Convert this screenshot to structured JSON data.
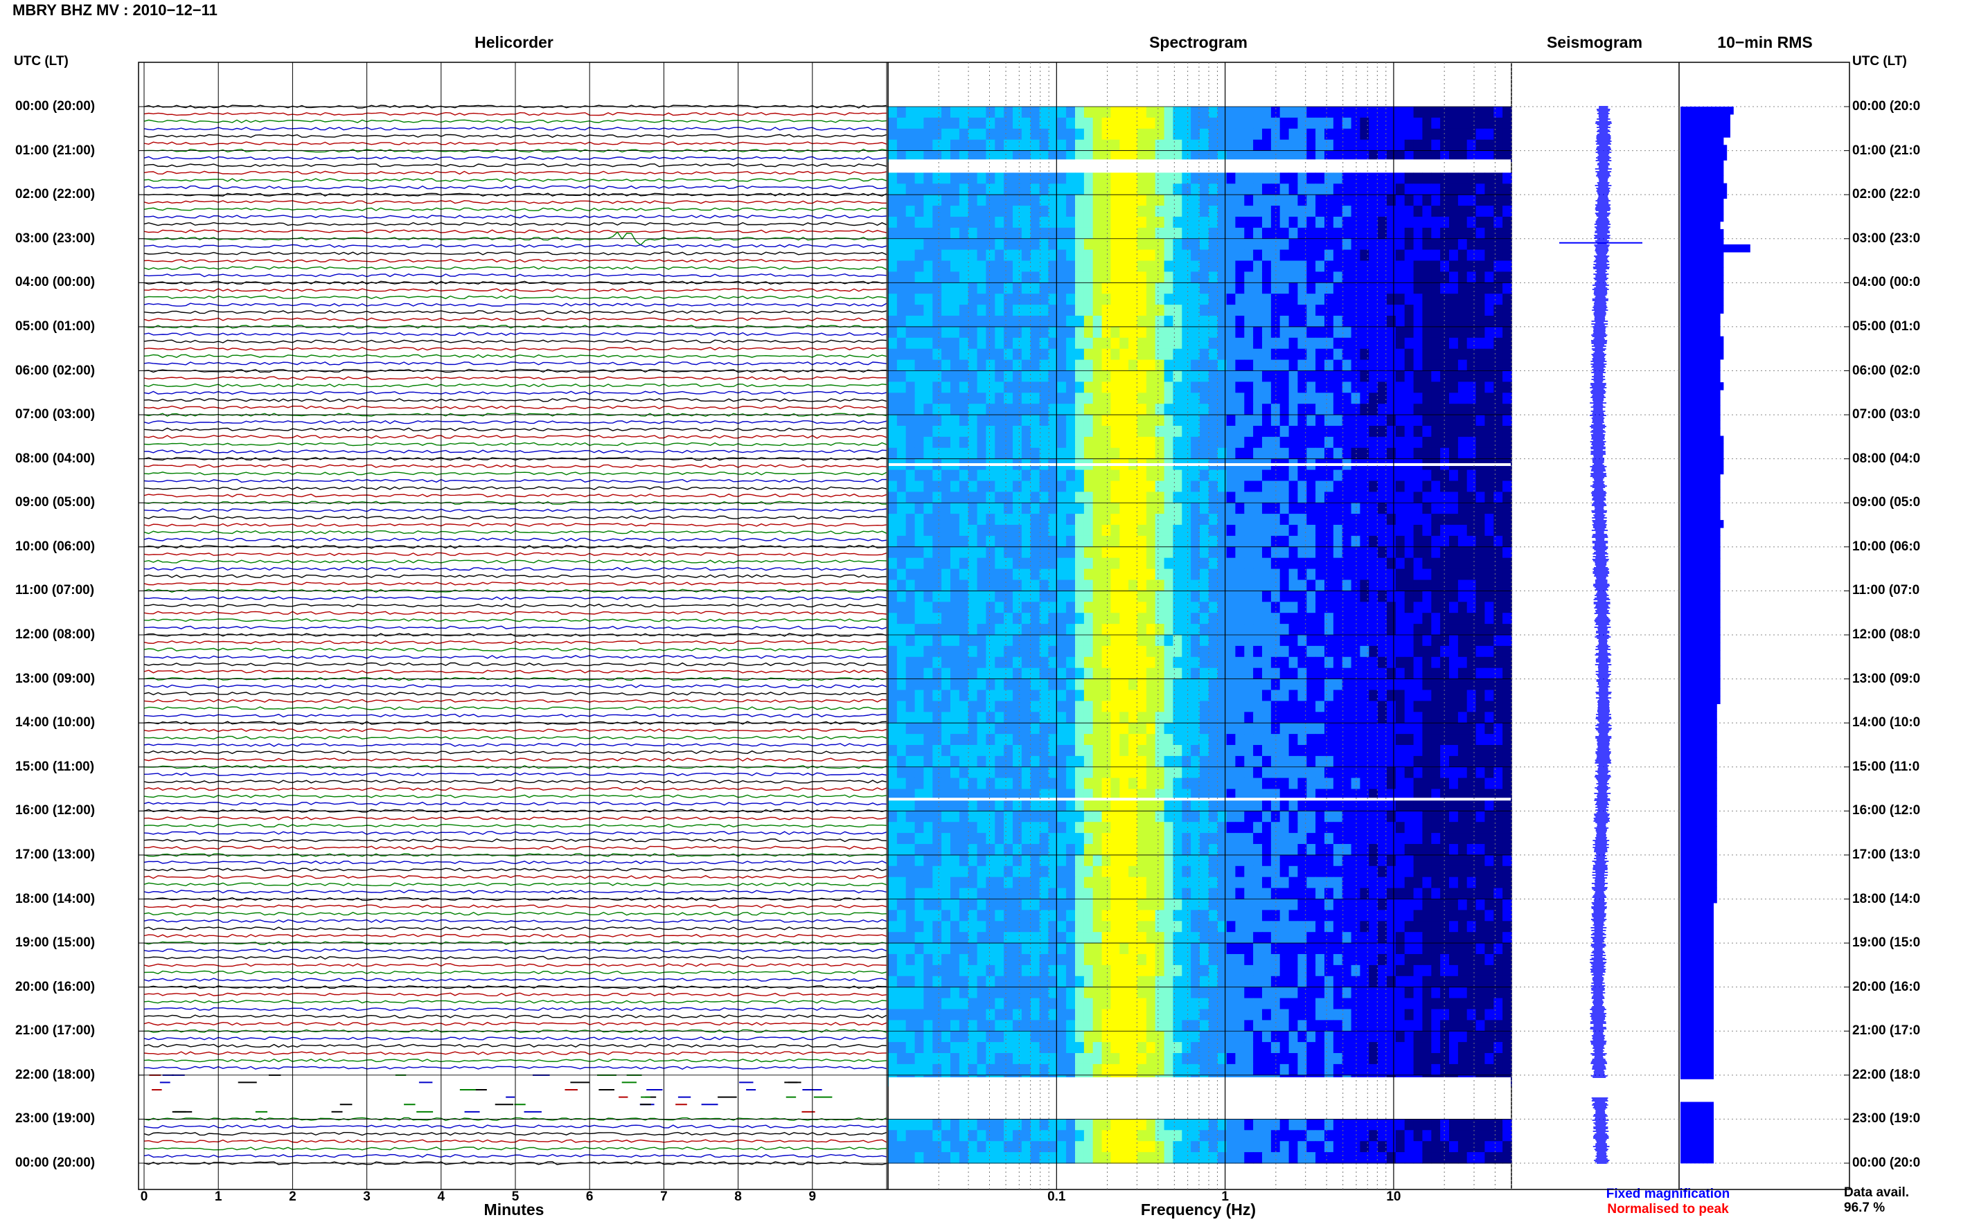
{
  "title": "MBRY BHZ MV : 2010−12−11",
  "utc_header": "UTC (LT)",
  "panels": {
    "helicorder": "Helicorder",
    "spectrogram": "Spectrogram",
    "seismogram": "Seismogram",
    "rms": "10−min RMS"
  },
  "legend": {
    "fixed": "Fixed magnification",
    "fixed_color": "#0000ff",
    "normalised": "Normalised to peak",
    "normalised_color": "#ff0000"
  },
  "data_avail": {
    "label": "Data avail.",
    "value": "96.7 %"
  },
  "chart_data": {
    "type": "heatmap",
    "hour_labels_left": [
      "00:00 (20:00)",
      "01:00 (21:00)",
      "02:00 (22:00)",
      "03:00 (23:00)",
      "04:00 (00:00)",
      "05:00 (01:00)",
      "06:00 (02:00)",
      "07:00 (03:00)",
      "08:00 (04:00)",
      "09:00 (05:00)",
      "10:00 (06:00)",
      "11:00 (07:00)",
      "12:00 (08:00)",
      "13:00 (09:00)",
      "14:00 (10:00)",
      "15:00 (11:00)",
      "16:00 (12:00)",
      "17:00 (13:00)",
      "18:00 (14:00)",
      "19:00 (15:00)",
      "20:00 (16:00)",
      "21:00 (17:00)",
      "22:00 (18:00)",
      "23:00 (19:00)",
      "00:00 (20:00)"
    ],
    "hour_labels_right": [
      "00:00 (20:0",
      "01:00 (21:0",
      "02:00 (22:0",
      "03:00 (23:0",
      "04:00 (00:0",
      "05:00 (01:0",
      "06:00 (02:0",
      "07:00 (03:0",
      "08:00 (04:0",
      "09:00 (05:0",
      "10:00 (06:0",
      "11:00 (07:0",
      "12:00 (08:0",
      "13:00 (09:0",
      "14:00 (10:0",
      "15:00 (11:0",
      "16:00 (12:0",
      "17:00 (13:0",
      "18:00 (14:0",
      "19:00 (15:0",
      "20:00 (16:0",
      "21:00 (17:0",
      "22:00 (18:0",
      "23:00 (19:0",
      "00:00 (20:0"
    ],
    "helicorder": {
      "xlabel": "Minutes",
      "x_ticks": [
        "0",
        "1",
        "2",
        "3",
        "4",
        "5",
        "6",
        "7",
        "8",
        "9"
      ],
      "xlim": [
        0,
        10
      ],
      "trace_colors": [
        "#000000",
        "#b40000",
        "#008000",
        "#0000c8"
      ],
      "traces_per_hour": 6,
      "event_hour": 3.0,
      "event_minute": 6.6,
      "data_gaps_hours": [
        [
          1.2,
          1.35
        ],
        [
          7.9,
          8.05
        ],
        [
          22.0,
          23.0
        ]
      ]
    },
    "spectrogram": {
      "xlabel": "Frequency (Hz)",
      "scale": "log",
      "x_ticks": [
        "0.1",
        "1",
        "10"
      ],
      "xlim": [
        0.01,
        50
      ],
      "gaps_hours": [
        [
          1.2,
          1.4
        ],
        [
          8.1,
          8.15
        ],
        [
          15.7,
          15.75
        ],
        [
          22.05,
          23.0
        ]
      ],
      "colormap": [
        "#00008b",
        "#0000ff",
        "#1e90ff",
        "#00c8ff",
        "#7fffd4",
        "#c8ff32",
        "#ffff00"
      ]
    },
    "seismogram": {
      "event_hour": 3.0,
      "color": "#0000ff"
    },
    "rms": {
      "color": "#0000ff",
      "values": [
        1.6,
        1.5,
        1.5,
        1.5,
        1.3,
        1.4,
        1.4,
        1.3,
        1.3,
        1.3,
        1.4,
        1.4,
        1.3,
        1.3,
        1.3,
        1.2,
        1.3,
        1.3,
        2.1,
        1.3,
        1.3,
        1.3,
        1.3,
        1.3,
        1.3,
        1.3,
        1.3,
        1.2,
        1.2,
        1.2,
        1.3,
        1.3,
        1.3,
        1.2,
        1.2,
        1.2,
        1.3,
        1.2,
        1.2,
        1.2,
        1.2,
        1.2,
        1.2,
        1.3,
        1.3,
        1.3,
        1.3,
        1.3,
        1.2,
        1.2,
        1.2,
        1.2,
        1.2,
        1.2,
        1.3,
        1.2,
        1.2,
        1.2,
        1.2,
        1.2,
        1.2,
        1.2,
        1.2,
        1.2,
        1.2,
        1.2,
        1.2,
        1.2,
        1.2,
        1.2,
        1.2,
        1.2,
        1.2,
        1.2,
        1.2,
        1.2,
        1.2,
        1.2,
        1.1,
        1.1,
        1.1,
        1.1,
        1.1,
        1.1,
        1.1,
        1.1,
        1.1,
        1.1,
        1.1,
        1.1,
        1.1,
        1.1,
        1.1,
        1.1,
        1.1,
        1.1,
        1.1,
        1.1,
        1.1,
        1.1,
        1.1,
        1.1,
        1.1,
        1.1,
        1.0,
        1.0,
        1.0,
        1.0,
        1.0,
        1.0,
        1.0,
        1.0,
        1.0,
        1.0,
        1.0,
        1.0,
        1.0,
        1.0,
        1.0,
        1.0,
        1.0,
        1.0,
        1.0,
        1.0,
        1.0,
        1.0,
        1.0,
        1.0,
        1.0,
        1.0,
        1.0,
        1.0,
        1.0,
        1.0,
        1.0,
        1.0,
        1.0,
        1.0
      ]
    }
  }
}
